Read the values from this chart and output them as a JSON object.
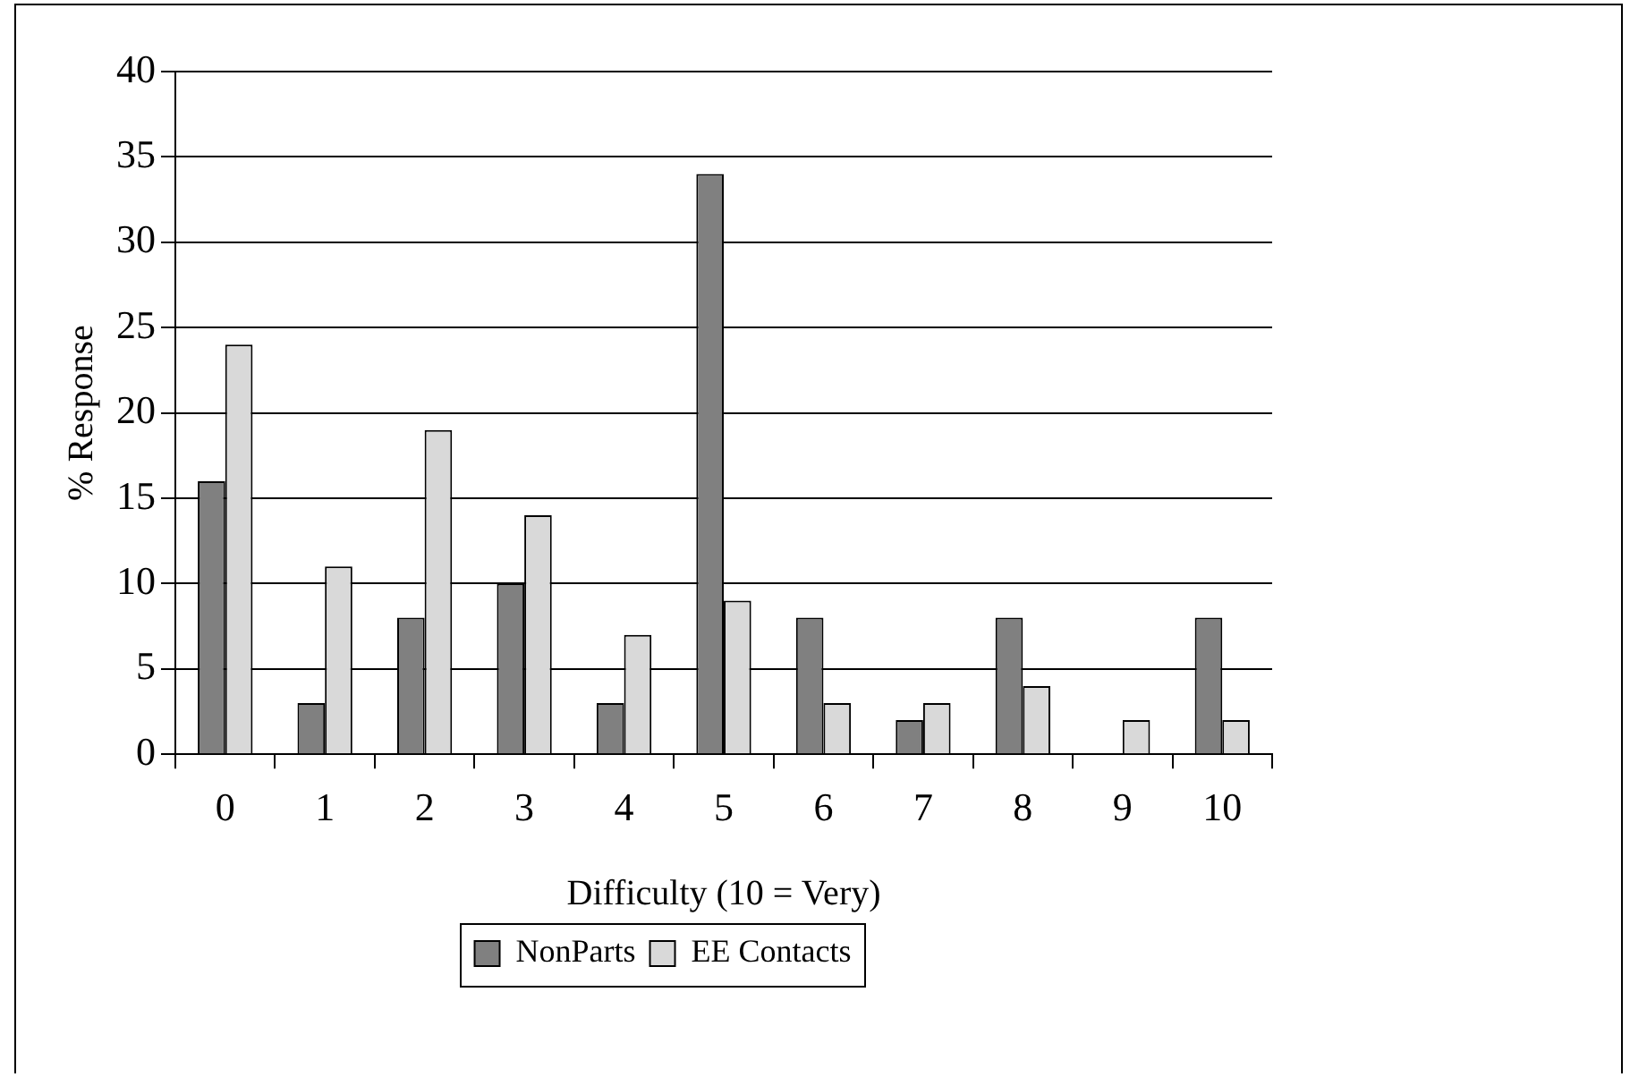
{
  "chart_data": {
    "type": "bar",
    "xlabel": "Difficulty (10 = Very)",
    "ylabel": "% Response",
    "categories": [
      "0",
      "1",
      "2",
      "3",
      "4",
      "5",
      "6",
      "7",
      "8",
      "9",
      "10"
    ],
    "series": [
      {
        "name": "NonParts",
        "color": "#808080",
        "values": [
          16,
          3,
          8,
          10,
          3,
          34,
          8,
          2,
          8,
          0,
          8
        ]
      },
      {
        "name": "EE Contacts",
        "color": "#d9d9d9",
        "values": [
          24,
          11,
          19,
          14,
          7,
          9,
          3,
          3,
          4,
          2,
          2
        ]
      }
    ],
    "ylim": [
      0,
      40
    ],
    "yticks": [
      0,
      5,
      10,
      15,
      20,
      25,
      30,
      35,
      40
    ],
    "grid": "y",
    "legend": "bottom"
  }
}
